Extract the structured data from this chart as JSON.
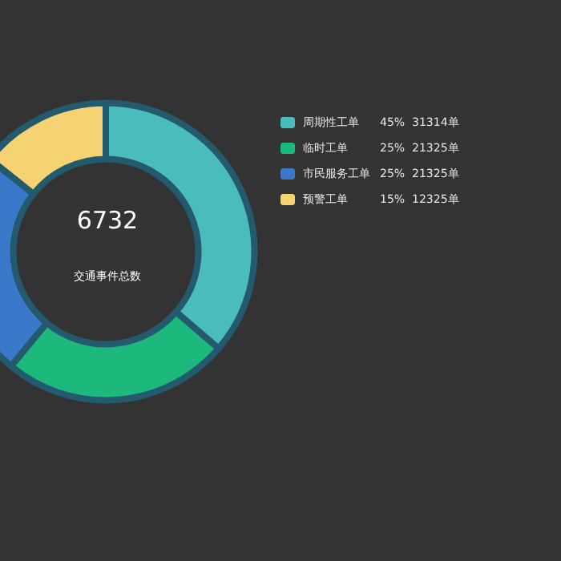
{
  "chart_data": {
    "type": "donut",
    "title": "6732",
    "subtitle": "交通事件总数",
    "categories": [
      "周期性工单",
      "临时工单",
      "市民服务工单",
      "预警工单"
    ],
    "values": [
      31314,
      21325,
      21325,
      12325
    ],
    "colors": [
      "#4bbcbc",
      "#1cb87c",
      "#3a78c9",
      "#f5d373"
    ],
    "value_labels": [
      "31314单",
      "21325单",
      "21325单",
      "12325单"
    ],
    "annotations": [
      "45%",
      "25%",
      "25%",
      "15%"
    ],
    "legend": "right"
  }
}
